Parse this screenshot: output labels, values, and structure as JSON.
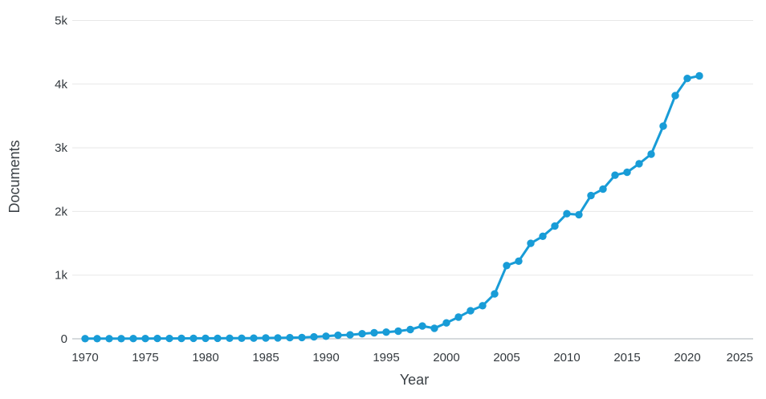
{
  "chart": {
    "colors": {
      "line": "#189cd7",
      "marker": "#189cd7",
      "grid": "#e7e7e7",
      "axis_line": "#c9ced2",
      "tick_label": "#33393e",
      "axis_title": "#3a4045",
      "background": "#ffffff"
    }
  },
  "chart_data": {
    "type": "line",
    "title": "",
    "xlabel": "Year",
    "ylabel": "Documents",
    "legend": false,
    "grid": "horizontal",
    "marker": "circle",
    "xlim": [
      1970,
      2025
    ],
    "ylim": [
      0,
      5000
    ],
    "xticks": [
      1970,
      1975,
      1980,
      1985,
      1990,
      1995,
      2000,
      2005,
      2010,
      2015,
      2020,
      2025
    ],
    "yticks": [
      {
        "value": 0,
        "label": "0"
      },
      {
        "value": 1000,
        "label": "1k"
      },
      {
        "value": 2000,
        "label": "2k"
      },
      {
        "value": 3000,
        "label": "3k"
      },
      {
        "value": 4000,
        "label": "4k"
      },
      {
        "value": 5000,
        "label": "5k"
      }
    ],
    "x": [
      1970,
      1971,
      1972,
      1973,
      1974,
      1975,
      1976,
      1977,
      1978,
      1979,
      1980,
      1981,
      1982,
      1983,
      1984,
      1985,
      1986,
      1987,
      1988,
      1989,
      1990,
      1991,
      1992,
      1993,
      1994,
      1995,
      1996,
      1997,
      1998,
      1999,
      2000,
      2001,
      2002,
      2003,
      2004,
      2005,
      2006,
      2007,
      2008,
      2009,
      2010,
      2011,
      2012,
      2013,
      2014,
      2015,
      2016,
      2017,
      2018,
      2019,
      2020,
      2021
    ],
    "series": [
      {
        "name": "Documents",
        "values": [
          2,
          2,
          3,
          3,
          4,
          4,
          5,
          5,
          6,
          7,
          7,
          8,
          9,
          9,
          10,
          12,
          14,
          18,
          20,
          30,
          40,
          55,
          62,
          80,
          95,
          105,
          120,
          145,
          200,
          165,
          250,
          340,
          440,
          520,
          705,
          1150,
          1220,
          1500,
          1610,
          1770,
          1965,
          1950,
          2250,
          2350,
          2570,
          2615,
          2750,
          2900,
          3340,
          3820,
          4090,
          4130
        ]
      }
    ]
  }
}
